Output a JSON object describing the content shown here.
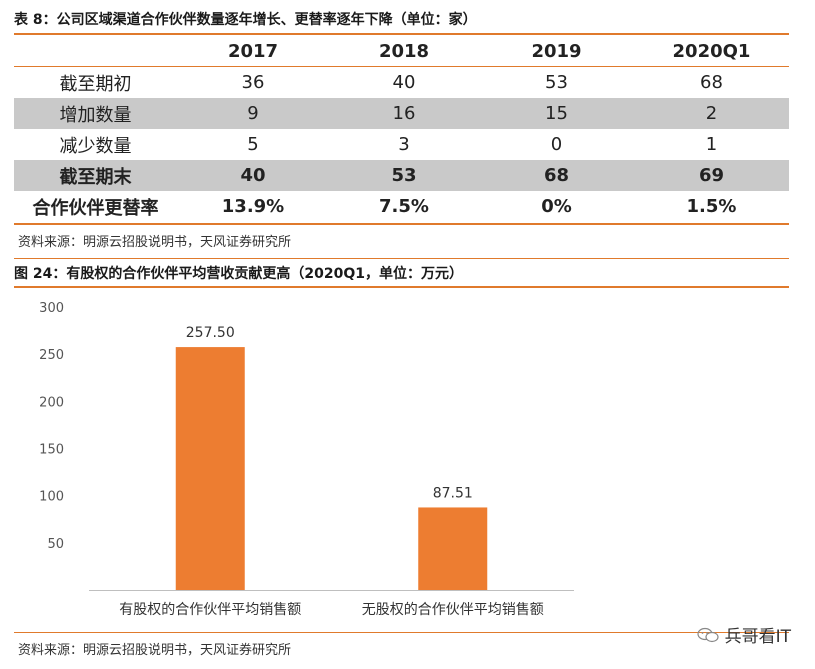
{
  "table": {
    "title": "表 8：公司区域渠道合作伙伴数量逐年增长、更替率逐年下降（单位：家）",
    "headers": [
      "",
      "2017",
      "2018",
      "2019",
      "2020Q1"
    ],
    "rows": [
      {
        "label": "截至期初",
        "values": [
          "36",
          "40",
          "53",
          "68"
        ]
      },
      {
        "label": "增加数量",
        "values": [
          "9",
          "16",
          "15",
          "2"
        ]
      },
      {
        "label": "减少数量",
        "values": [
          "5",
          "3",
          "0",
          "1"
        ]
      },
      {
        "label": "截至期末",
        "values": [
          "40",
          "53",
          "68",
          "69"
        ]
      },
      {
        "label": "合作伙伴更替率",
        "values": [
          "13.9%",
          "7.5%",
          "0%",
          "1.5%"
        ]
      }
    ],
    "source": "资料来源：明源云招股说明书，天风证券研究所"
  },
  "figure": {
    "title": "图 24：有股权的合作伙伴平均营收贡献更高（2020Q1，单位：万元）",
    "source": "资料来源：明源云招股说明书，天风证券研究所"
  },
  "chart_data": {
    "type": "bar",
    "title": "有股权的合作伙伴平均营收贡献更高（2020Q1，单位：万元）",
    "categories": [
      "有股权的合作伙伴平均销售额",
      "无股权的合作伙伴平均销售额"
    ],
    "values": [
      257.5,
      87.51
    ],
    "value_labels": [
      "257.50",
      "87.51"
    ],
    "yticks": [
      0,
      50,
      100,
      150,
      200,
      250,
      300
    ],
    "ytick_labels": [
      "",
      "50",
      "100",
      "150",
      "200",
      "250",
      "300"
    ],
    "ylim": [
      0,
      300
    ],
    "bar_color": "#ed7d31",
    "grid": false
  },
  "watermark": {
    "text": "兵哥看IT",
    "icon": "wechat-icon"
  },
  "colors": {
    "accent": "#e07a2c",
    "grey_row": "#c9c9c9"
  }
}
